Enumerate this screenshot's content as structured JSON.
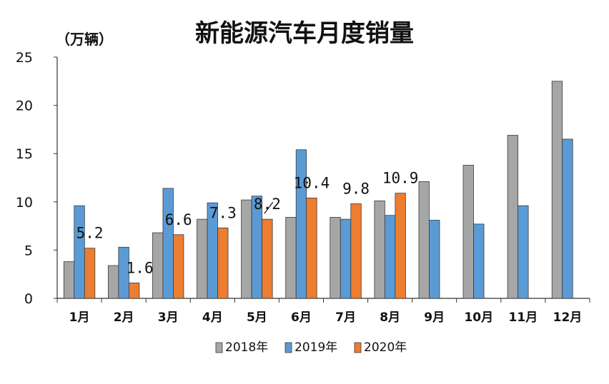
{
  "chart_data": {
    "type": "bar",
    "title": "新能源汽车月度销量",
    "unit_label": "（万辆）",
    "categories": [
      "1月",
      "2月",
      "3月",
      "4月",
      "5月",
      "6月",
      "7月",
      "8月",
      "9月",
      "10月",
      "11月",
      "12月"
    ],
    "series": [
      {
        "name": "2018年",
        "color": "#a6a6a6",
        "values": [
          3.8,
          3.4,
          6.8,
          8.2,
          10.2,
          8.4,
          8.4,
          10.1,
          12.1,
          13.8,
          16.9,
          22.5
        ]
      },
      {
        "name": "2019年",
        "color": "#5b9bd5",
        "values": [
          9.6,
          5.3,
          11.4,
          9.9,
          10.6,
          15.4,
          8.2,
          8.6,
          8.1,
          7.7,
          9.6,
          16.5
        ]
      },
      {
        "name": "2020年",
        "color": "#ed7d31",
        "values": [
          5.2,
          1.6,
          6.6,
          7.3,
          8.2,
          10.4,
          9.8,
          10.9,
          null,
          null,
          null,
          null
        ]
      }
    ],
    "data_labels": [
      "5.2",
      "1.6",
      "6.6",
      "7.3",
      "8.2",
      "10.4",
      "9.8",
      "10.9"
    ],
    "y_ticks": [
      "0",
      "5",
      "10",
      "15",
      "20",
      "25"
    ],
    "ylim": [
      0,
      25
    ],
    "grid": false,
    "legend": "bottom"
  }
}
